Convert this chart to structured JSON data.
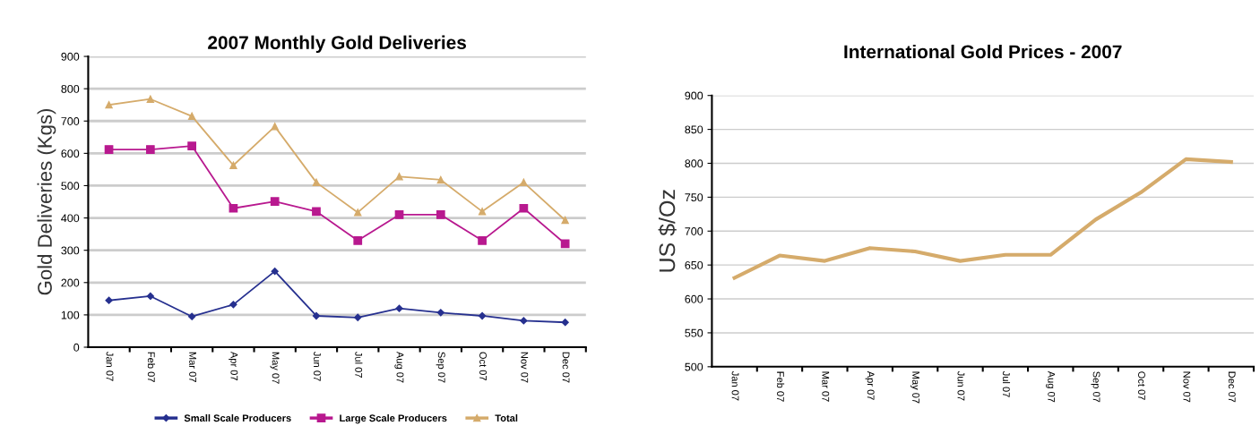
{
  "chart_data": [
    {
      "type": "line",
      "title": "2007 Monthly Gold Deliveries",
      "ylabel": "Gold Deliveries (Kgs)",
      "categories": [
        "Jan 07",
        "Feb 07",
        "Mar 07",
        "Apr 07",
        "May 07",
        "Jun 07",
        "Jul 07",
        "Aug 07",
        "Sep 07",
        "Oct 07",
        "Nov 07",
        "Dec 07"
      ],
      "series": [
        {
          "name": "Small Scale Producers",
          "color": "#26308f",
          "marker": "diamond",
          "values": [
            145,
            158,
            95,
            132,
            235,
            97,
            92,
            120,
            107,
            97,
            82,
            77
          ]
        },
        {
          "name": "Large Scale Producers",
          "color": "#b8198f",
          "marker": "square",
          "values": [
            612,
            612,
            623,
            430,
            451,
            420,
            330,
            410,
            410,
            330,
            430,
            320
          ]
        },
        {
          "name": "Total",
          "color": "#d5ab6b",
          "marker": "triangle",
          "values": [
            750,
            768,
            715,
            563,
            683,
            510,
            417,
            528,
            518,
            420,
            510,
            393
          ]
        }
      ],
      "ylim": [
        0,
        900
      ],
      "yticks": [
        0,
        100,
        200,
        300,
        400,
        500,
        600,
        700,
        800,
        900
      ],
      "grid": "y",
      "legend": "bottom"
    },
    {
      "type": "line",
      "title": "International Gold Prices - 2007",
      "ylabel": "US $/Oz",
      "categories": [
        "Jan 07",
        "Feb 07",
        "Mar 07",
        "Apr 07",
        "May 07",
        "Jun 07",
        "Jul 07",
        "Aug 07",
        "Sep 07",
        "Oct 07",
        "Nov 07",
        "Dec 07"
      ],
      "series": [
        {
          "color": "#d5ab6b",
          "values": [
            631,
            664,
            656,
            675,
            670,
            656,
            665,
            665,
            717,
            757,
            806,
            802
          ]
        }
      ],
      "ylim": [
        500,
        900
      ],
      "yticks": [
        500,
        550,
        600,
        650,
        700,
        750,
        800,
        850,
        900
      ],
      "grid": "y",
      "legend": false
    }
  ]
}
